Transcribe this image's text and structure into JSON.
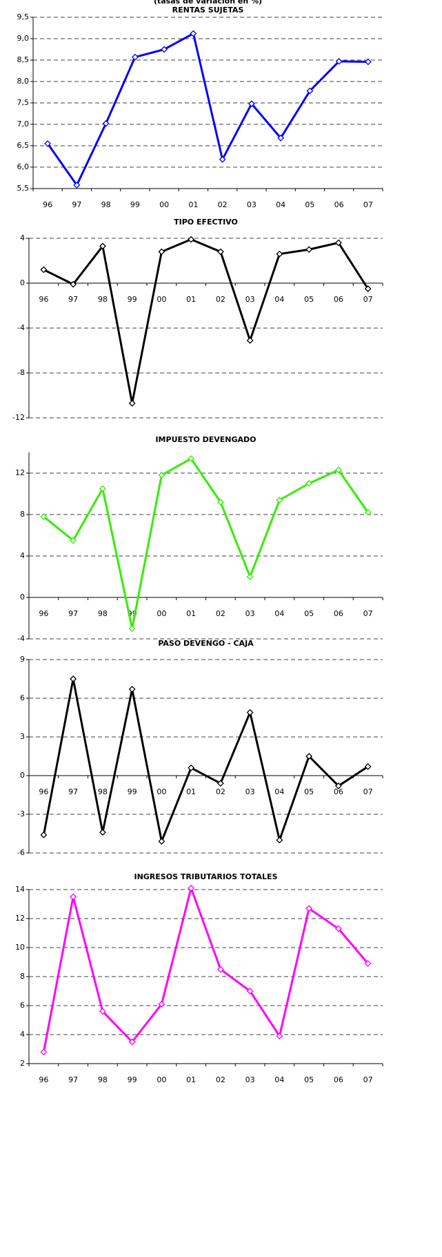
{
  "chart_data": [
    {
      "type": "line",
      "subtitle": "(tasas de variación en %)",
      "title": "RENTAS SUJETAS",
      "categories": [
        "96",
        "97",
        "98",
        "99",
        "00",
        "01",
        "02",
        "03",
        "04",
        "05",
        "06",
        "07"
      ],
      "values": [
        6.55,
        5.58,
        7.02,
        8.57,
        8.75,
        9.12,
        6.18,
        7.48,
        6.68,
        7.78,
        8.47,
        8.46
      ],
      "color": "#0000ff",
      "ylim": [
        5.5,
        9.5
      ],
      "yticks": [
        {
          "value": 5.5,
          "label": "5,5"
        },
        {
          "value": 6.0,
          "label": "6,0"
        },
        {
          "value": 6.5,
          "label": "6,5"
        },
        {
          "value": 7.0,
          "label": "7,0"
        },
        {
          "value": 7.5,
          "label": "7,5"
        },
        {
          "value": 8.0,
          "label": "8,0"
        },
        {
          "value": 8.5,
          "label": "8,5"
        },
        {
          "value": 9.0,
          "label": "9,0"
        },
        {
          "value": 9.5,
          "label": "9,5"
        }
      ],
      "grid": true
    },
    {
      "type": "line",
      "title": "TIPO EFECTIVO",
      "categories": [
        "96",
        "97",
        "98",
        "99",
        "00",
        "01",
        "02",
        "03",
        "04",
        "05",
        "06",
        "07"
      ],
      "values": [
        1.2,
        -0.1,
        3.3,
        -10.7,
        2.8,
        3.9,
        2.8,
        -5.1,
        2.6,
        3.0,
        3.6,
        -0.5
      ],
      "color": "#000000",
      "ylim": [
        -12,
        4
      ],
      "yticks": [
        -12,
        -8,
        -4,
        0,
        4
      ],
      "grid": true
    },
    {
      "type": "line",
      "title": "IMPUESTO DEVENGADO",
      "categories": [
        "96",
        "97",
        "98",
        "99",
        "00",
        "01",
        "02",
        "03",
        "04",
        "05",
        "06",
        "07"
      ],
      "values": [
        7.8,
        5.5,
        10.5,
        -3.0,
        11.8,
        13.4,
        9.2,
        2.0,
        9.4,
        11.0,
        12.3,
        8.2
      ],
      "color": "#33ee00",
      "ylim": [
        -4,
        14
      ],
      "yticks": [
        -4,
        0,
        4,
        8,
        12
      ],
      "grid": true
    },
    {
      "type": "line",
      "title": "PASO DEVENGO - CAJA",
      "categories": [
        "96",
        "97",
        "98",
        "99",
        "00",
        "01",
        "02",
        "03",
        "04",
        "05",
        "06",
        "07"
      ],
      "values": [
        -4.6,
        7.5,
        -4.4,
        6.7,
        -5.1,
        0.6,
        -0.6,
        4.9,
        -5.0,
        1.5,
        -0.8,
        0.7
      ],
      "color": "#000000",
      "ylim": [
        -6,
        9
      ],
      "yticks": [
        -6,
        -3,
        0,
        3,
        6,
        9
      ],
      "grid": true
    },
    {
      "type": "line",
      "title": "INGRESOS TRIBUTARIOS TOTALES",
      "categories": [
        "96",
        "97",
        "98",
        "99",
        "00",
        "01",
        "02",
        "03",
        "04",
        "05",
        "06",
        "07"
      ],
      "values": [
        2.8,
        13.5,
        5.6,
        3.5,
        6.1,
        14.1,
        8.5,
        7.0,
        3.9,
        12.7,
        11.3,
        8.9
      ],
      "color": "#ff00ff",
      "ylim": [
        2,
        14
      ],
      "yticks": [
        2,
        4,
        6,
        8,
        10,
        12,
        14
      ],
      "grid": true
    }
  ]
}
